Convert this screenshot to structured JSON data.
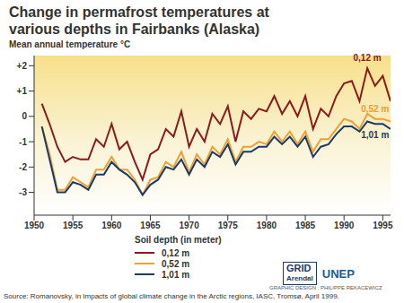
{
  "chart_data": {
    "type": "line",
    "title": "Change in permafrost temperatures at various depths in Fairbanks (Alaska)",
    "y_label": "Mean annual temperature °C",
    "legend_title": "Soil depth (in meter)",
    "legend": "bottom",
    "grid": false,
    "source": "Source: Romanovsky, in Impacts of global climate change in the Arctic regions, IASC, Tromsø, April 1999.",
    "credits": [
      "GRID",
      "Arendal",
      "UNEP",
      "GRAPHIC DESIGN : PHILIPPE REKACEWICZ"
    ],
    "x": [
      1951,
      1952,
      1953,
      1954,
      1955,
      1956,
      1957,
      1958,
      1959,
      1960,
      1961,
      1962,
      1963,
      1964,
      1965,
      1966,
      1967,
      1968,
      1969,
      1970,
      1971,
      1972,
      1973,
      1974,
      1975,
      1976,
      1977,
      1978,
      1979,
      1980,
      1981,
      1982,
      1983,
      1984,
      1985,
      1986,
      1987,
      1988,
      1989,
      1990,
      1991,
      1992,
      1993,
      1994,
      1995,
      1996
    ],
    "xlim": [
      1950,
      1996
    ],
    "xticks": [
      1950,
      1955,
      1960,
      1965,
      1970,
      1975,
      1980,
      1985,
      1990,
      1995
    ],
    "ylim": [
      -3.9,
      2.4
    ],
    "yticks": [
      -3,
      -2,
      -1,
      0,
      {
        "value": 1,
        "label": "+1"
      },
      {
        "value": 2,
        "label": "+2"
      }
    ],
    "series": [
      {
        "name": "0,12 m",
        "color": "#8b1a1a",
        "values": [
          0.5,
          -0.3,
          -1.2,
          -1.8,
          -1.6,
          -1.7,
          -1.7,
          -0.9,
          -1.2,
          -0.3,
          -1.3,
          -1.0,
          -1.8,
          -2.5,
          -1.5,
          -1.3,
          -0.5,
          -0.8,
          0.2,
          -1.2,
          -0.5,
          -1.0,
          0.1,
          -0.3,
          0.4,
          -1.0,
          0.2,
          -0.1,
          0.3,
          0.2,
          0.8,
          0.1,
          0.6,
          0.0,
          0.8,
          -0.5,
          0.3,
          0.0,
          0.8,
          1.3,
          1.4,
          0.6,
          1.9,
          1.2,
          1.6,
          0.6
        ]
      },
      {
        "name": "0,52 m",
        "color": "#f0a030",
        "values": [
          -0.4,
          -1.5,
          -2.9,
          -2.9,
          -2.4,
          -2.6,
          -2.8,
          -2.1,
          -2.1,
          -1.6,
          -2.1,
          -2.1,
          -2.5,
          -3.1,
          -2.5,
          -2.4,
          -1.8,
          -2.0,
          -1.4,
          -2.2,
          -1.5,
          -1.9,
          -1.2,
          -1.5,
          -0.9,
          -1.8,
          -1.2,
          -1.2,
          -1.0,
          -1.1,
          -0.6,
          -1.0,
          -0.6,
          -1.1,
          -0.6,
          -1.4,
          -0.9,
          -0.9,
          -0.5,
          -0.1,
          -0.2,
          -0.5,
          0.1,
          -0.1,
          -0.1,
          -0.2
        ]
      },
      {
        "name": "1,01 m",
        "color": "#1a3a6a",
        "values": [
          -0.4,
          -1.7,
          -3.0,
          -3.0,
          -2.6,
          -2.7,
          -2.9,
          -2.3,
          -2.3,
          -1.8,
          -2.1,
          -2.3,
          -2.6,
          -3.1,
          -2.7,
          -2.5,
          -2.0,
          -2.1,
          -1.7,
          -2.3,
          -1.7,
          -2.0,
          -1.4,
          -1.6,
          -1.1,
          -1.9,
          -1.4,
          -1.4,
          -1.2,
          -1.2,
          -0.8,
          -1.1,
          -0.8,
          -1.2,
          -0.8,
          -1.6,
          -1.2,
          -1.1,
          -0.7,
          -0.4,
          -0.4,
          -0.6,
          -0.2,
          -0.3,
          -0.3,
          -0.5
        ]
      }
    ]
  }
}
